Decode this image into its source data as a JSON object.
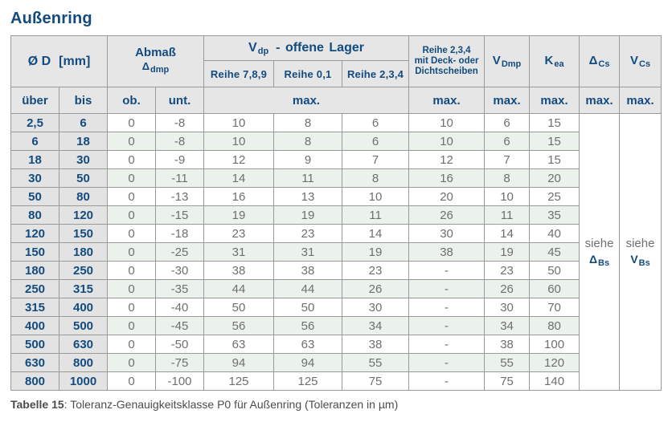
{
  "title": "Außenring",
  "colors": {
    "heading_blue": "#134b7f",
    "header_bg": "#e6e6e6",
    "range_col_bg": "#e3e3e3",
    "row_stripe_green": "#ebf2eb",
    "row_stripe_white": "#ffffff",
    "value_gray": "#6f6f6f",
    "border_gray": "#9a9a9a",
    "caption_gray": "#4c4c4c"
  },
  "header": {
    "d_label": "Ø D",
    "d_unit": "[mm]",
    "abmass_label": "Abmaß",
    "abmass_symbol": "Δ",
    "abmass_sub": "dmp",
    "vdp_symbol": "V",
    "vdp_sub": "dp",
    "vdp_rest": "- offene Lager",
    "reihe789": "Reihe 7,8,9",
    "reihe01": "Reihe 0,1",
    "reihe234": "Reihe 2,3,4",
    "deck_line1": "Reihe 2,3,4",
    "deck_line2": "mit Deck- oder",
    "deck_line3": "Dichtscheiben",
    "vdmp_symbol": "V",
    "vdmp_sub": "Dmp",
    "kea_symbol": "K",
    "kea_sub": "ea",
    "dcs_symbol": "Δ",
    "dcs_sub": "Cs",
    "vcs_symbol": "V",
    "vcs_sub": "Cs",
    "ueber": "über",
    "bis": "bis",
    "ob": "ob.",
    "unt": "unt.",
    "max": "max."
  },
  "rows": [
    [
      "2,5",
      "6",
      "0",
      "-8",
      "10",
      "8",
      "6",
      "10",
      "6",
      "15"
    ],
    [
      "6",
      "18",
      "0",
      "-8",
      "10",
      "8",
      "6",
      "10",
      "6",
      "15"
    ],
    [
      "18",
      "30",
      "0",
      "-9",
      "12",
      "9",
      "7",
      "12",
      "7",
      "15"
    ],
    [
      "30",
      "50",
      "0",
      "-11",
      "14",
      "11",
      "8",
      "16",
      "8",
      "20"
    ],
    [
      "50",
      "80",
      "0",
      "-13",
      "16",
      "13",
      "10",
      "20",
      "10",
      "25"
    ],
    [
      "80",
      "120",
      "0",
      "-15",
      "19",
      "19",
      "11",
      "26",
      "11",
      "35"
    ],
    [
      "120",
      "150",
      "0",
      "-18",
      "23",
      "23",
      "14",
      "30",
      "14",
      "40"
    ],
    [
      "150",
      "180",
      "0",
      "-25",
      "31",
      "31",
      "19",
      "38",
      "19",
      "45"
    ],
    [
      "180",
      "250",
      "0",
      "-30",
      "38",
      "38",
      "23",
      "-",
      "23",
      "50"
    ],
    [
      "250",
      "315",
      "0",
      "-35",
      "44",
      "44",
      "26",
      "-",
      "26",
      "60"
    ],
    [
      "315",
      "400",
      "0",
      "-40",
      "50",
      "50",
      "30",
      "-",
      "30",
      "70"
    ],
    [
      "400",
      "500",
      "0",
      "-45",
      "56",
      "56",
      "34",
      "-",
      "34",
      "80"
    ],
    [
      "500",
      "630",
      "0",
      "-50",
      "63",
      "63",
      "38",
      "-",
      "38",
      "100"
    ],
    [
      "630",
      "800",
      "0",
      "-75",
      "94",
      "94",
      "55",
      "-",
      "55",
      "120"
    ],
    [
      "800",
      "1000",
      "0",
      "-100",
      "125",
      "125",
      "75",
      "-",
      "75",
      "140"
    ]
  ],
  "see": {
    "word": "siehe",
    "dbs_symbol": "Δ",
    "dbs_sub": "Bs",
    "vbs_symbol": "V",
    "vbs_sub": "Bs"
  },
  "caption": {
    "label": "Tabelle 15",
    "text": ": Toleranz-Genauigkeitsklasse P0 für Außenring (Toleranzen in µm)"
  }
}
